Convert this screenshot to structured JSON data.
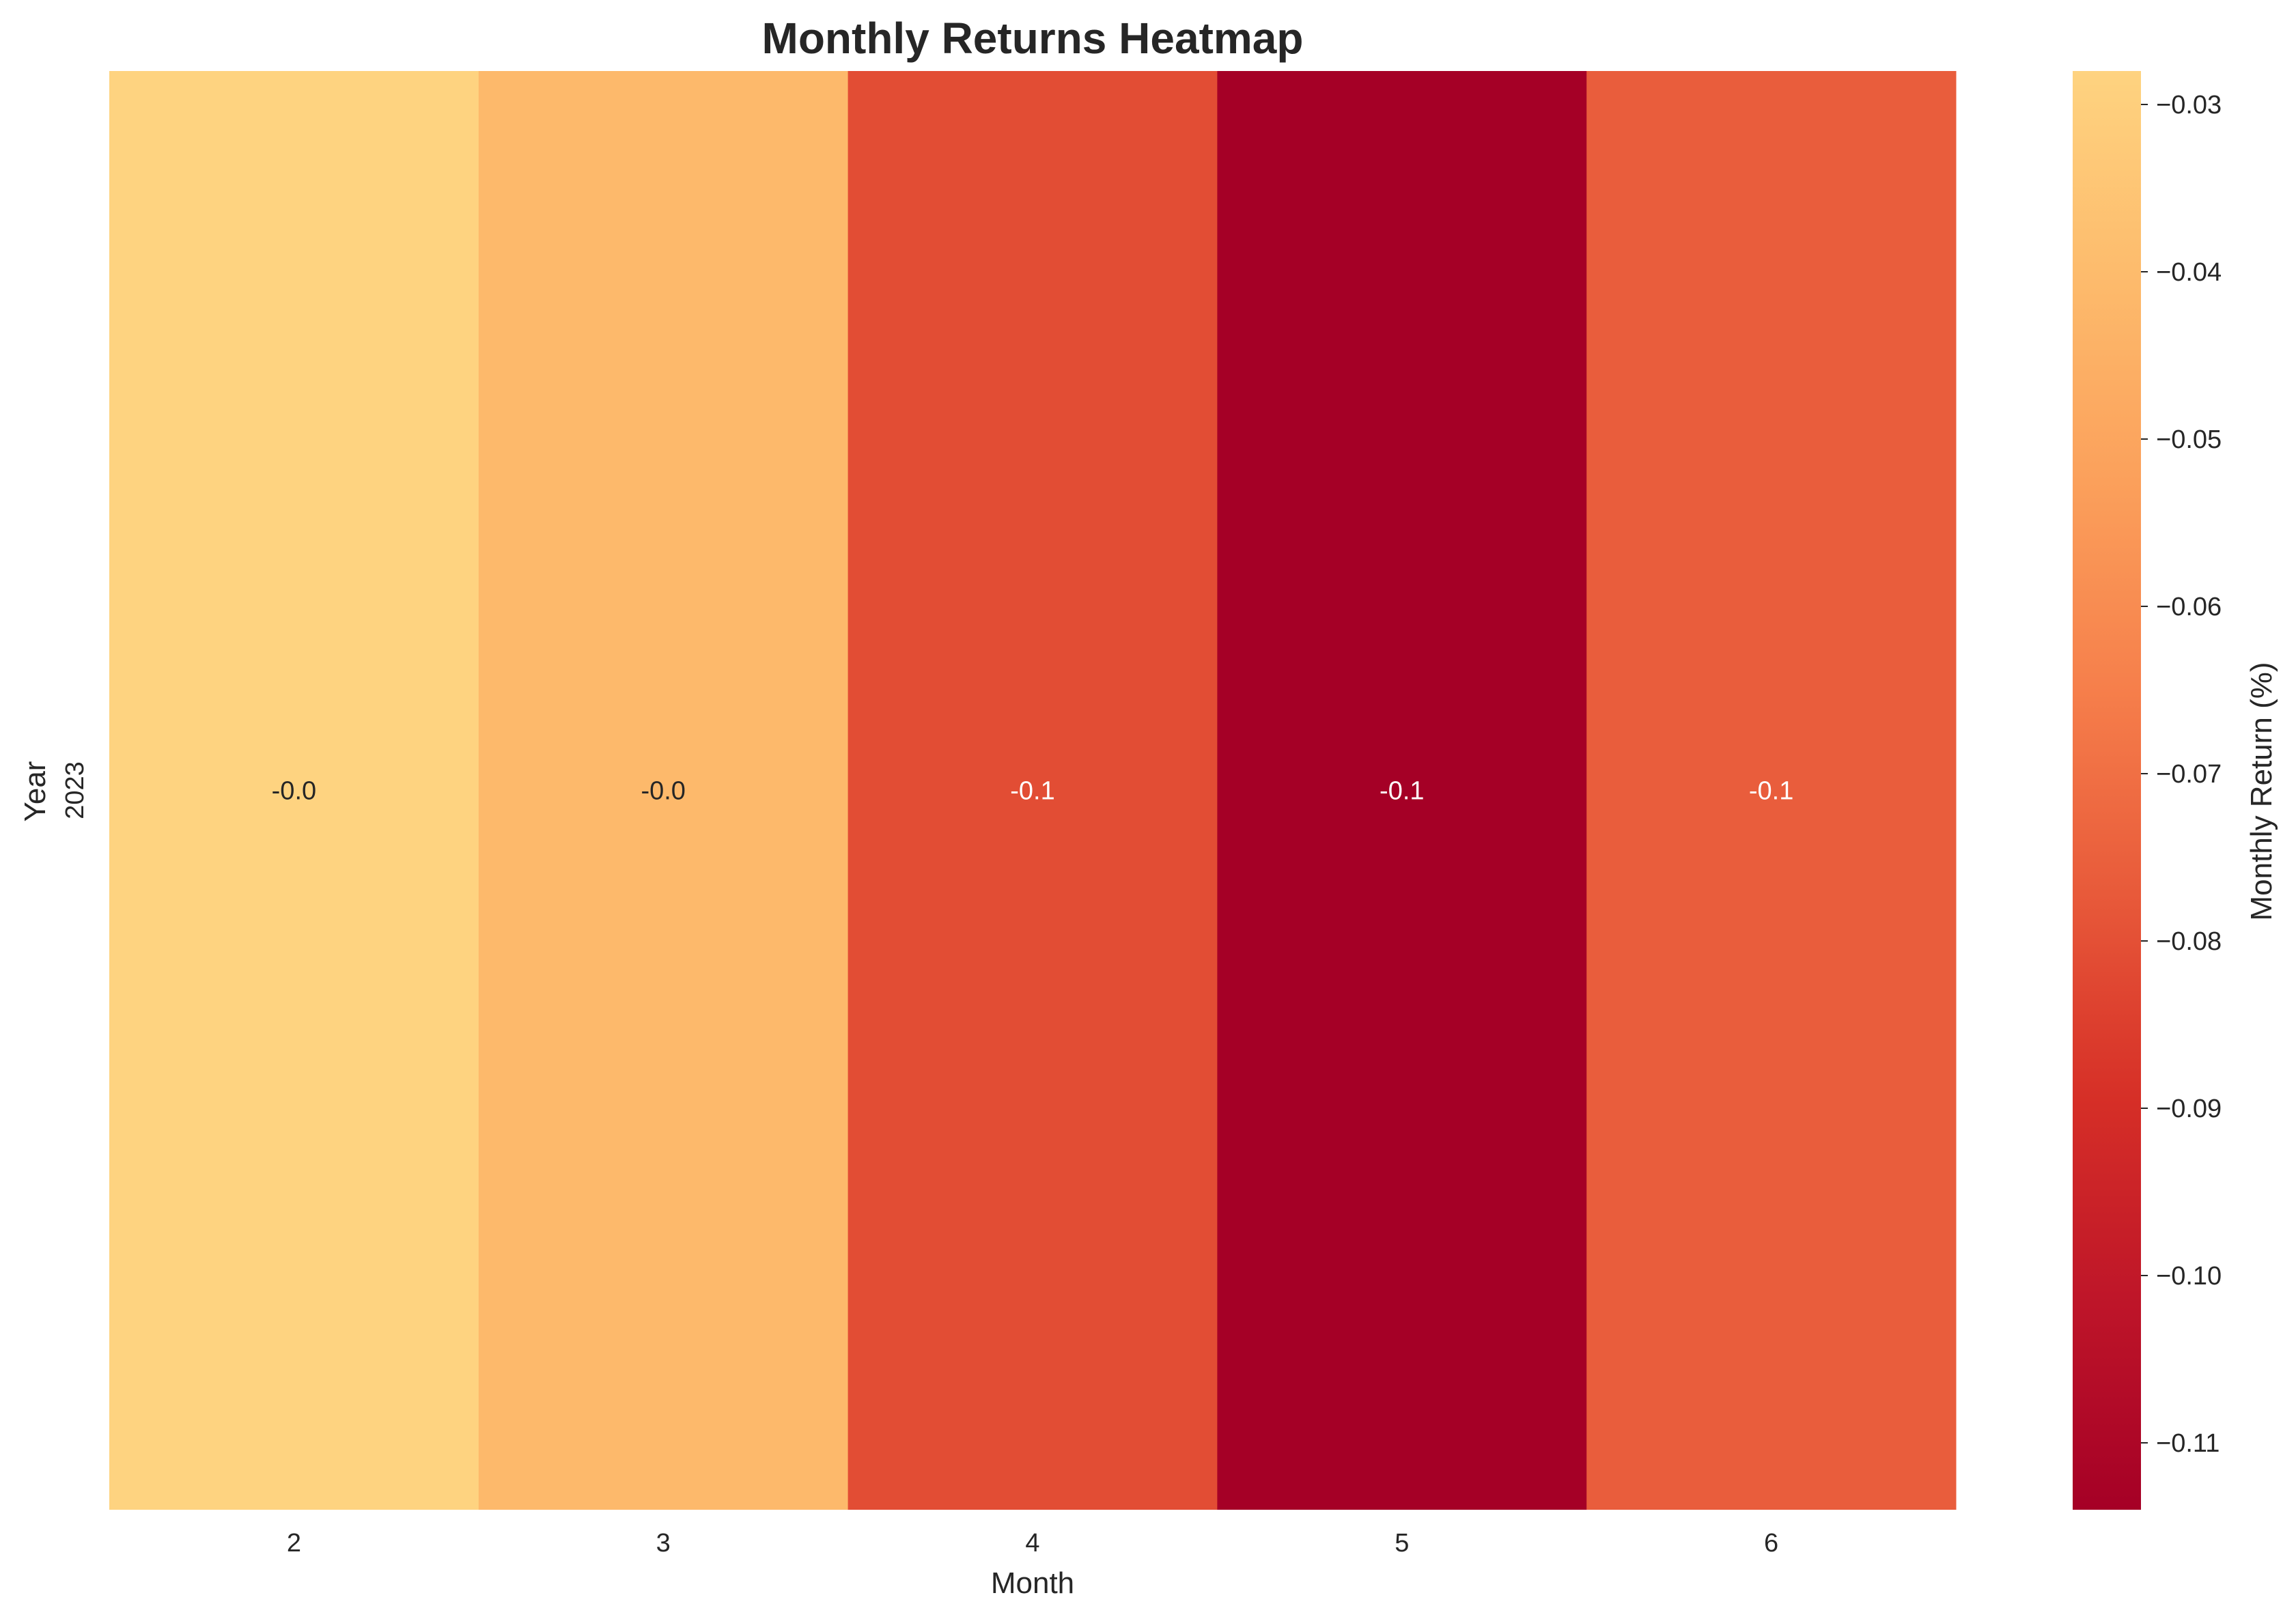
{
  "chart_data": {
    "type": "heatmap",
    "title": "Monthly Returns Heatmap",
    "xlabel": "Month",
    "ylabel": "Year",
    "x_categories": [
      "2",
      "3",
      "4",
      "5",
      "6"
    ],
    "y_categories": [
      "2023"
    ],
    "values": [
      [
        -0.028,
        -0.041,
        -0.081,
        -0.114,
        -0.076
      ]
    ],
    "annotations": [
      [
        "-0.0",
        "-0.0",
        "-0.1",
        "-0.1",
        "-0.1"
      ]
    ],
    "colorbar": {
      "label": "Monthly Return (%)",
      "range": [
        -0.114,
        -0.028
      ],
      "ticks": [
        -0.03,
        -0.04,
        -0.05,
        -0.06,
        -0.07,
        -0.08,
        -0.09,
        -0.1,
        -0.11
      ],
      "tick_labels": [
        "−0.03",
        "−0.04",
        "−0.05",
        "−0.06",
        "−0.07",
        "−0.08",
        "−0.09",
        "−0.10",
        "−0.11"
      ]
    },
    "colormap": "YlOrRd-trimmed",
    "colormap_stops": [
      "#a50026",
      "#be1529",
      "#d62f27",
      "#e85a3a",
      "#f67f4b",
      "#fba05b",
      "#fdbb6c",
      "#fed380"
    ],
    "annotation_text_colors": {
      "light_cell": "#262626",
      "dark_cell": "#ffffff"
    }
  }
}
